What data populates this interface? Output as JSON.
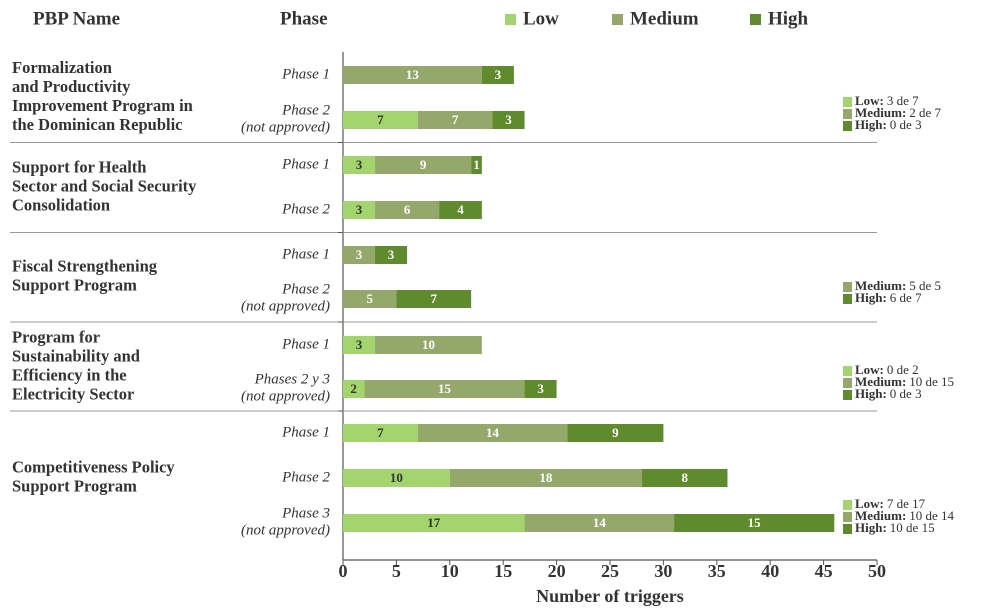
{
  "chart_data": {
    "type": "stacked-bar-horizontal",
    "header": {
      "name": "PBP Name",
      "phase": "Phase"
    },
    "groups": [
      {
        "name": [
          "Formalization",
          "and Productivity",
          "Improvement Program in",
          "the Dominican Republic"
        ],
        "categories": [
          [
            "Phase 1"
          ],
          [
            "Phase 2",
            "(not approved)"
          ]
        ],
        "annotation": [
          {
            "level": "Low:",
            "text": "3 de 7",
            "color": "#a3d46e"
          },
          {
            "level": "Medium:",
            "text": "2 de 7",
            "color": "#95a86b"
          },
          {
            "level": "High:",
            "text": "0 de 3",
            "color": "#5f8a2e"
          }
        ]
      },
      {
        "name": [
          "Support for Health",
          "Sector and Social Security",
          "Consolidation"
        ],
        "categories": [
          [
            "Phase 1"
          ],
          [
            "Phase 2"
          ]
        ],
        "annotation": []
      },
      {
        "name": [
          "Fiscal Strengthening",
          "Support Program"
        ],
        "categories": [
          [
            "Phase 1"
          ],
          [
            "Phase 2",
            "(not approved)"
          ]
        ],
        "annotation": [
          {
            "level": "Medium:",
            "text": "5 de 5",
            "color": "#95a86b"
          },
          {
            "level": "High:",
            "text": "6 de 7",
            "color": "#5f8a2e"
          }
        ]
      },
      {
        "name": [
          "Program for",
          "Sustainability and",
          "Efficiency in the",
          "Electricity Sector"
        ],
        "categories": [
          [
            "Phase 1"
          ],
          [
            "Phases 2 y 3",
            "(not approved)"
          ]
        ],
        "annotation": [
          {
            "level": "Low:",
            "text": "0 de 2",
            "color": "#a3d46e"
          },
          {
            "level": "Medium:",
            "text": "10 de 15",
            "color": "#95a86b"
          },
          {
            "level": "High:",
            "text": "0 de 3",
            "color": "#5f8a2e"
          }
        ]
      },
      {
        "name": [
          "Competitiveness Policy",
          "Support Program"
        ],
        "categories": [
          [
            "Phase 1"
          ],
          [
            "Phase 2"
          ],
          [
            "Phase 3",
            "(not approved)"
          ]
        ],
        "annotation": [
          {
            "level": "Low:",
            "text": "7 de 17",
            "color": "#a3d46e"
          },
          {
            "level": "Medium:",
            "text": "10 de 14",
            "color": "#95a86b"
          },
          {
            "level": "High:",
            "text": "10 de 15",
            "color": "#5f8a2e"
          }
        ]
      }
    ],
    "series": [
      {
        "name": "Low",
        "color": "#a3d46e",
        "values": [
          null,
          7,
          3,
          3,
          null,
          null,
          3,
          2,
          7,
          10,
          17
        ]
      },
      {
        "name": "Medium",
        "color": "#95a86b",
        "values": [
          13,
          7,
          9,
          6,
          3,
          5,
          10,
          15,
          14,
          18,
          14
        ]
      },
      {
        "name": "High",
        "color": "#5f8a2e",
        "values": [
          3,
          3,
          1,
          4,
          3,
          7,
          null,
          3,
          9,
          8,
          15
        ]
      }
    ],
    "x_label": "Number of triggers",
    "xlim": [
      0,
      50
    ],
    "xticks": [
      0,
      5,
      10,
      15,
      20,
      25,
      30,
      35,
      40,
      45,
      50
    ]
  }
}
